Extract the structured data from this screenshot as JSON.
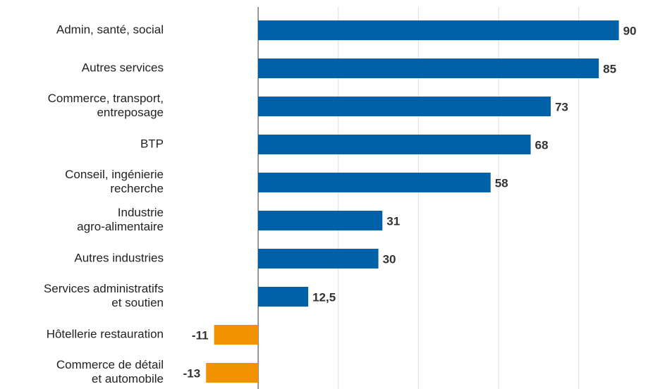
{
  "chart_data": {
    "type": "hbar",
    "categories": [
      "Admin, santé, social",
      "Autres services",
      "Commerce, transport,\nentreposage",
      "BTP",
      "Conseil, ingénierie\nrecherche",
      "Industrie\nagro-alimentaire",
      "Autres industries",
      "Services administratifs\net soutien",
      "Hôtellerie restauration",
      "Commerce de détail\net automobile"
    ],
    "values": [
      90,
      85,
      73,
      68,
      58,
      31,
      30,
      12.5,
      -11,
      -13
    ],
    "value_labels": [
      "90",
      "85",
      "73",
      "68",
      "58",
      "31",
      "30",
      "12,5",
      "-11",
      "-13"
    ],
    "color": "#0060a8",
    "negative_color": "#f39200",
    "xlim": [
      -20,
      100
    ],
    "xticks": [
      0,
      20,
      40,
      60,
      80
    ],
    "grid": true
  }
}
